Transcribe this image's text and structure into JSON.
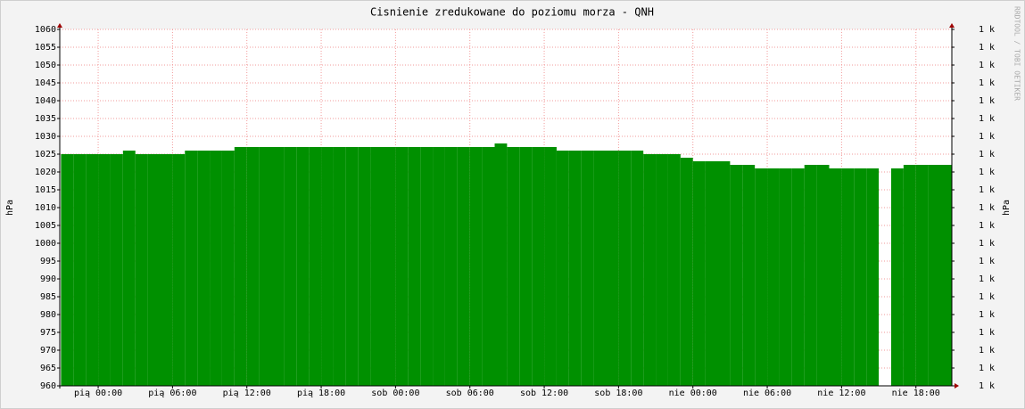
{
  "chart_data": {
    "type": "area",
    "title": "Cisnienie zredukowane do poziomu morza - QNH",
    "y_label": "hPa",
    "y2_label": "hPa",
    "watermark": "RRDTOOL / TOBI OETIKER",
    "color": "#009000",
    "grid": true,
    "x": [
      -3,
      -2,
      -1,
      0,
      1,
      2,
      3,
      4,
      5,
      6,
      7,
      8,
      9,
      10,
      11,
      12,
      13,
      14,
      15,
      16,
      17,
      18,
      19,
      20,
      21,
      22,
      23,
      24,
      25,
      26,
      27,
      28,
      29,
      30,
      31,
      32,
      33,
      34,
      35,
      36,
      37,
      38,
      39,
      40,
      41,
      42,
      43,
      44,
      45,
      46,
      47,
      48,
      49,
      50,
      51,
      52,
      53,
      54,
      55,
      56,
      57,
      58,
      59,
      60,
      61,
      62,
      63,
      64,
      65,
      66,
      67,
      68
    ],
    "values": [
      1025,
      1025,
      1025,
      1025,
      1025,
      1026,
      1025,
      1025,
      1025,
      1025,
      1026,
      1026,
      1026,
      1026,
      1027,
      1027,
      1027,
      1027,
      1027,
      1027,
      1027,
      1027,
      1027,
      1027,
      1027,
      1027,
      1027,
      1027,
      1027,
      1027,
      1027,
      1027,
      1027,
      1027,
      1027,
      1028,
      1027,
      1027,
      1027,
      1027,
      1026,
      1026,
      1026,
      1026,
      1026,
      1026,
      1026,
      1025,
      1025,
      1025,
      1024,
      1023,
      1023,
      1023,
      1022,
      1022,
      1021,
      1021,
      1021,
      1021,
      1022,
      1022,
      1021,
      1021,
      1021,
      1021,
      null,
      1021,
      1022,
      1022,
      1022,
      1022
    ],
    "xlim": [
      -3.1,
      68.9
    ],
    "xticks": [
      {
        "value": 0,
        "label": "pią 00:00"
      },
      {
        "value": 6,
        "label": "pią 06:00"
      },
      {
        "value": 12,
        "label": "pią 12:00"
      },
      {
        "value": 18,
        "label": "pią 18:00"
      },
      {
        "value": 24,
        "label": "sob 00:00"
      },
      {
        "value": 30,
        "label": "sob 06:00"
      },
      {
        "value": 36,
        "label": "sob 12:00"
      },
      {
        "value": 42,
        "label": "sob 18:00"
      },
      {
        "value": 48,
        "label": "nie 00:00"
      },
      {
        "value": 54,
        "label": "nie 06:00"
      },
      {
        "value": 60,
        "label": "nie 12:00"
      },
      {
        "value": 66,
        "label": "nie 18:00"
      }
    ],
    "ylim": [
      960,
      1060
    ],
    "yticks": [
      960,
      965,
      970,
      975,
      980,
      985,
      990,
      995,
      1000,
      1005,
      1010,
      1015,
      1020,
      1025,
      1030,
      1035,
      1040,
      1045,
      1050,
      1055,
      1060
    ],
    "y2lim": [
      960,
      1060
    ],
    "y2ticks": [
      {
        "value": 960,
        "label": "1 k"
      },
      {
        "value": 965,
        "label": "1 k"
      },
      {
        "value": 970,
        "label": "1 k"
      },
      {
        "value": 975,
        "label": "1 k"
      },
      {
        "value": 980,
        "label": "1 k"
      },
      {
        "value": 985,
        "label": "1 k"
      },
      {
        "value": 990,
        "label": "1 k"
      },
      {
        "value": 995,
        "label": "1 k"
      },
      {
        "value": 1000,
        "label": "1 k"
      },
      {
        "value": 1005,
        "label": "1 k"
      },
      {
        "value": 1010,
        "label": "1 k"
      },
      {
        "value": 1015,
        "label": "1 k"
      },
      {
        "value": 1020,
        "label": "1 k"
      },
      {
        "value": 1025,
        "label": "1 k"
      },
      {
        "value": 1030,
        "label": "1 k"
      },
      {
        "value": 1035,
        "label": "1 k"
      },
      {
        "value": 1040,
        "label": "1 k"
      },
      {
        "value": 1045,
        "label": "1 k"
      },
      {
        "value": 1050,
        "label": "1 k"
      },
      {
        "value": 1055,
        "label": "1 k"
      },
      {
        "value": 1060,
        "label": "1 k"
      }
    ]
  }
}
